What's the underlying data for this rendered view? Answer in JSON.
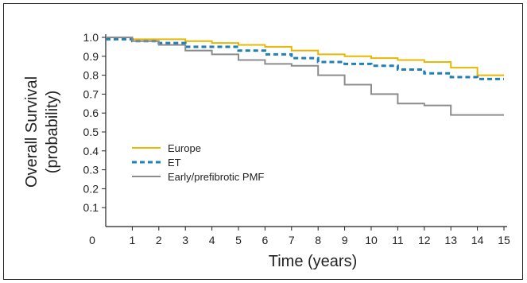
{
  "chart_data": {
    "type": "line",
    "title": "",
    "xlabel": "Time (years)",
    "ylabel_lines": [
      "Overall Survival",
      "(probability)"
    ],
    "xlim": [
      0,
      15
    ],
    "ylim": [
      0,
      1.0
    ],
    "x_ticks": [
      0,
      1,
      2,
      3,
      4,
      5,
      6,
      7,
      8,
      9,
      10,
      11,
      12,
      13,
      14,
      15
    ],
    "y_ticks": [
      "0.1",
      "0.2",
      "0.3",
      "0.4",
      "0.5",
      "0.6",
      "0.7",
      "0.8",
      "0.9",
      "1.0"
    ],
    "grid": false,
    "legend_position": "lower-left",
    "series": [
      {
        "name": "Europe",
        "color": "#E8B800",
        "style": "solid",
        "steps": [
          [
            0,
            1.0
          ],
          [
            1,
            0.99
          ],
          [
            3,
            0.98
          ],
          [
            4,
            0.97
          ],
          [
            5,
            0.96
          ],
          [
            6,
            0.95
          ],
          [
            7,
            0.93
          ],
          [
            8,
            0.91
          ],
          [
            9,
            0.9
          ],
          [
            10,
            0.89
          ],
          [
            11,
            0.88
          ],
          [
            12,
            0.87
          ],
          [
            13,
            0.84
          ],
          [
            14,
            0.8
          ],
          [
            15,
            0.8
          ]
        ]
      },
      {
        "name": "ET",
        "color": "#1F7FB8",
        "style": "dashed",
        "steps": [
          [
            0,
            0.99
          ],
          [
            1,
            0.98
          ],
          [
            2,
            0.97
          ],
          [
            3,
            0.95
          ],
          [
            5,
            0.93
          ],
          [
            6,
            0.91
          ],
          [
            7,
            0.89
          ],
          [
            8,
            0.87
          ],
          [
            9,
            0.86
          ],
          [
            10,
            0.85
          ],
          [
            11,
            0.83
          ],
          [
            12,
            0.81
          ],
          [
            13,
            0.79
          ],
          [
            14,
            0.78
          ],
          [
            15,
            0.78
          ]
        ]
      },
      {
        "name": "Early/prefibrotic PMF",
        "color": "#8C8C8C",
        "style": "solid",
        "steps": [
          [
            0,
            1.0
          ],
          [
            1,
            0.98
          ],
          [
            2,
            0.96
          ],
          [
            3,
            0.93
          ],
          [
            4,
            0.91
          ],
          [
            5,
            0.88
          ],
          [
            6,
            0.86
          ],
          [
            7,
            0.85
          ],
          [
            8,
            0.8
          ],
          [
            9,
            0.75
          ],
          [
            10,
            0.7
          ],
          [
            11,
            0.65
          ],
          [
            12,
            0.64
          ],
          [
            13,
            0.59
          ],
          [
            14,
            0.59
          ],
          [
            15,
            0.59
          ]
        ]
      }
    ]
  }
}
